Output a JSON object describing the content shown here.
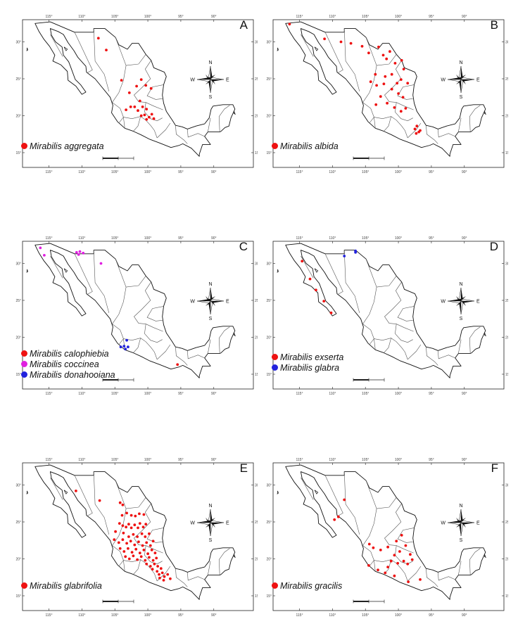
{
  "tick_labels": {
    "longitude": [
      "115°",
      "110°",
      "105°",
      "100°",
      "95°",
      "90°"
    ],
    "latitude": [
      "30°",
      "25°",
      "20°",
      "15°"
    ]
  },
  "compass": {
    "n": "N",
    "s": "S",
    "e": "E",
    "w": "W"
  },
  "colors": {
    "background": "#ffffff",
    "coastline": "#111111",
    "state_border": "#555555",
    "red": "#ee1111",
    "magenta": "#e020e0",
    "blue": "#2222dd"
  },
  "panels": [
    {
      "letter": "A",
      "legend": [
        {
          "label": "Mirabilis aggregata",
          "color": "red"
        }
      ],
      "points": {
        "red": [
          [
            -107.5,
            30.5
          ],
          [
            -106.3,
            28.9
          ],
          [
            -104.0,
            24.8
          ],
          [
            -102.8,
            23.1
          ],
          [
            -101.7,
            24.0
          ],
          [
            -101.0,
            24.9
          ],
          [
            -100.3,
            24.1
          ],
          [
            -99.5,
            23.7
          ],
          [
            -101.2,
            22.0
          ],
          [
            -102.0,
            21.2
          ],
          [
            -101.5,
            20.7
          ],
          [
            -100.8,
            21.2
          ],
          [
            -100.2,
            20.9
          ],
          [
            -100.5,
            20.1
          ],
          [
            -99.8,
            19.8
          ],
          [
            -99.4,
            20.2
          ],
          [
            -99.1,
            19.6
          ],
          [
            -100.2,
            19.5
          ],
          [
            -101.0,
            20.0
          ],
          [
            -102.6,
            21.2
          ],
          [
            -103.3,
            20.8
          ]
        ]
      }
    },
    {
      "letter": "B",
      "legend": [
        {
          "label": "Mirabilis albida",
          "color": "red"
        }
      ],
      "points": {
        "red": [
          [
            -116.5,
            32.4
          ],
          [
            -111.2,
            30.4
          ],
          [
            -108.7,
            30.0
          ],
          [
            -107.2,
            29.8
          ],
          [
            -105.5,
            29.4
          ],
          [
            -104.5,
            28.5
          ],
          [
            -103.0,
            29.3
          ],
          [
            -102.3,
            28.2
          ],
          [
            -101.8,
            27.7
          ],
          [
            -101.3,
            28.7
          ],
          [
            -100.5,
            27.1
          ],
          [
            -99.5,
            27.5
          ],
          [
            -99.2,
            26.3
          ],
          [
            -101.0,
            25.6
          ],
          [
            -102.0,
            25.3
          ],
          [
            -103.5,
            25.6
          ],
          [
            -104.2,
            24.6
          ],
          [
            -103.3,
            24.1
          ],
          [
            -102.2,
            24.3
          ],
          [
            -101.0,
            23.6
          ],
          [
            -100.2,
            24.4
          ],
          [
            -99.6,
            24.9
          ],
          [
            -98.6,
            24.4
          ],
          [
            -100.0,
            23.0
          ],
          [
            -99.3,
            22.5
          ],
          [
            -101.7,
            21.7
          ],
          [
            -100.6,
            21.1
          ],
          [
            -99.6,
            20.6
          ],
          [
            -98.9,
            21.0
          ],
          [
            -102.7,
            22.6
          ],
          [
            -103.4,
            21.5
          ],
          [
            -97.2,
            18.6
          ],
          [
            -97.5,
            18.2
          ],
          [
            -96.9,
            17.8
          ],
          [
            -97.3,
            17.6
          ],
          [
            -96.7,
            18.0
          ]
        ]
      }
    },
    {
      "letter": "C",
      "legend": [
        {
          "label": "Mirabilis calophiebia",
          "color": "red"
        },
        {
          "label": "Mirabilis coccinea",
          "color": "magenta"
        },
        {
          "label": "Mirabilis donahooiana",
          "color": "blue"
        }
      ],
      "points": {
        "red": [
          [
            -95.5,
            16.3
          ]
        ],
        "magenta": [
          [
            -116.3,
            32.1
          ],
          [
            -115.7,
            31.1
          ],
          [
            -110.8,
            31.5
          ],
          [
            -110.3,
            31.6
          ],
          [
            -109.8,
            31.4
          ],
          [
            -110.5,
            31.2
          ],
          [
            -107.1,
            30.0
          ]
        ],
        "blue": [
          [
            -103.2,
            19.6
          ],
          [
            -103.6,
            18.8
          ],
          [
            -104.1,
            18.7
          ],
          [
            -103.4,
            18.4
          ],
          [
            -103.0,
            18.7
          ]
        ]
      }
    },
    {
      "letter": "D",
      "legend": [
        {
          "label": "Mirabilis exserta",
          "color": "red"
        },
        {
          "label": "Mirabilis glabra",
          "color": "blue"
        }
      ],
      "points": {
        "red": [
          [
            -114.6,
            30.3
          ],
          [
            -113.4,
            27.9
          ],
          [
            -112.5,
            26.4
          ],
          [
            -111.3,
            24.9
          ],
          [
            -110.2,
            23.3
          ]
        ],
        "blue": [
          [
            -106.5,
            31.7
          ],
          [
            -106.5,
            31.5
          ],
          [
            -108.2,
            31.0
          ]
        ]
      }
    },
    {
      "letter": "E",
      "legend": [
        {
          "label": "Mirabilis glabrifolia",
          "color": "red"
        }
      ],
      "points": {
        "red": [
          [
            -110.9,
            29.2
          ],
          [
            -107.3,
            27.9
          ],
          [
            -104.2,
            27.6
          ],
          [
            -103.8,
            27.3
          ],
          [
            -103.9,
            25.9
          ],
          [
            -103.2,
            26.2
          ],
          [
            -102.5,
            25.9
          ],
          [
            -101.9,
            25.8
          ],
          [
            -101.3,
            26.1
          ],
          [
            -100.6,
            26.0
          ],
          [
            -104.3,
            24.8
          ],
          [
            -103.8,
            24.5
          ],
          [
            -103.3,
            24.3
          ],
          [
            -102.9,
            24.7
          ],
          [
            -102.5,
            24.2
          ],
          [
            -102.0,
            24.6
          ],
          [
            -101.5,
            24.2
          ],
          [
            -101.2,
            24.8
          ],
          [
            -100.7,
            24.3
          ],
          [
            -100.3,
            24.7
          ],
          [
            -104.9,
            23.7
          ],
          [
            -103.7,
            23.5
          ],
          [
            -102.9,
            23.0
          ],
          [
            -102.2,
            23.3
          ],
          [
            -101.6,
            23.0
          ],
          [
            -100.9,
            23.4
          ],
          [
            -100.4,
            23.0
          ],
          [
            -99.8,
            23.4
          ],
          [
            -105.1,
            22.6
          ],
          [
            -104.4,
            22.2
          ],
          [
            -103.8,
            22.6
          ],
          [
            -103.2,
            22.1
          ],
          [
            -102.6,
            22.4
          ],
          [
            -102.0,
            21.9
          ],
          [
            -101.4,
            22.3
          ],
          [
            -100.8,
            21.8
          ],
          [
            -100.2,
            22.2
          ],
          [
            -99.6,
            21.8
          ],
          [
            -99.2,
            22.4
          ],
          [
            -104.2,
            21.4
          ],
          [
            -103.6,
            21.0
          ],
          [
            -103.0,
            21.4
          ],
          [
            -102.4,
            20.9
          ],
          [
            -101.8,
            21.3
          ],
          [
            -101.2,
            20.8
          ],
          [
            -100.6,
            21.2
          ],
          [
            -100.0,
            20.7
          ],
          [
            -99.4,
            21.2
          ],
          [
            -98.9,
            20.8
          ],
          [
            -103.4,
            20.3
          ],
          [
            -102.8,
            20.0
          ],
          [
            -102.2,
            20.4
          ],
          [
            -101.6,
            19.9
          ],
          [
            -101.0,
            20.3
          ],
          [
            -100.4,
            19.8
          ],
          [
            -99.8,
            20.2
          ],
          [
            -99.2,
            19.8
          ],
          [
            -98.7,
            20.1
          ],
          [
            -100.2,
            19.3
          ],
          [
            -99.6,
            19.0
          ],
          [
            -99.0,
            19.3
          ],
          [
            -98.5,
            19.0
          ],
          [
            -99.3,
            18.6
          ],
          [
            -98.6,
            18.3
          ],
          [
            -98.0,
            18.7
          ],
          [
            -98.3,
            17.9
          ],
          [
            -97.8,
            18.1
          ],
          [
            -97.5,
            17.6
          ],
          [
            -97.0,
            17.9
          ],
          [
            -97.6,
            17.1
          ],
          [
            -98.2,
            17.4
          ],
          [
            -96.6,
            17.3
          ]
        ]
      }
    },
    {
      "letter": "F",
      "legend": [
        {
          "label": "Mirabilis gracilis",
          "color": "red"
        }
      ],
      "points": {
        "red": [
          [
            -108.2,
            28.0
          ],
          [
            -109.1,
            25.7
          ],
          [
            -109.7,
            25.3
          ],
          [
            -104.4,
            22.0
          ],
          [
            -103.8,
            21.5
          ],
          [
            -102.7,
            21.2
          ],
          [
            -101.6,
            21.6
          ],
          [
            -100.3,
            22.4
          ],
          [
            -99.5,
            23.2
          ],
          [
            -98.9,
            21.8
          ],
          [
            -99.8,
            21.0
          ],
          [
            -100.6,
            20.5
          ],
          [
            -101.1,
            19.7
          ],
          [
            -100.1,
            19.4
          ],
          [
            -99.2,
            19.7
          ],
          [
            -98.6,
            19.3
          ],
          [
            -98.2,
            20.6
          ],
          [
            -97.9,
            19.9
          ],
          [
            -104.5,
            19.1
          ],
          [
            -103.1,
            18.5
          ],
          [
            -102.0,
            18.1
          ],
          [
            -100.6,
            17.7
          ],
          [
            -98.5,
            16.9
          ],
          [
            -96.7,
            17.2
          ],
          [
            -101.6,
            18.9
          ]
        ]
      }
    }
  ]
}
